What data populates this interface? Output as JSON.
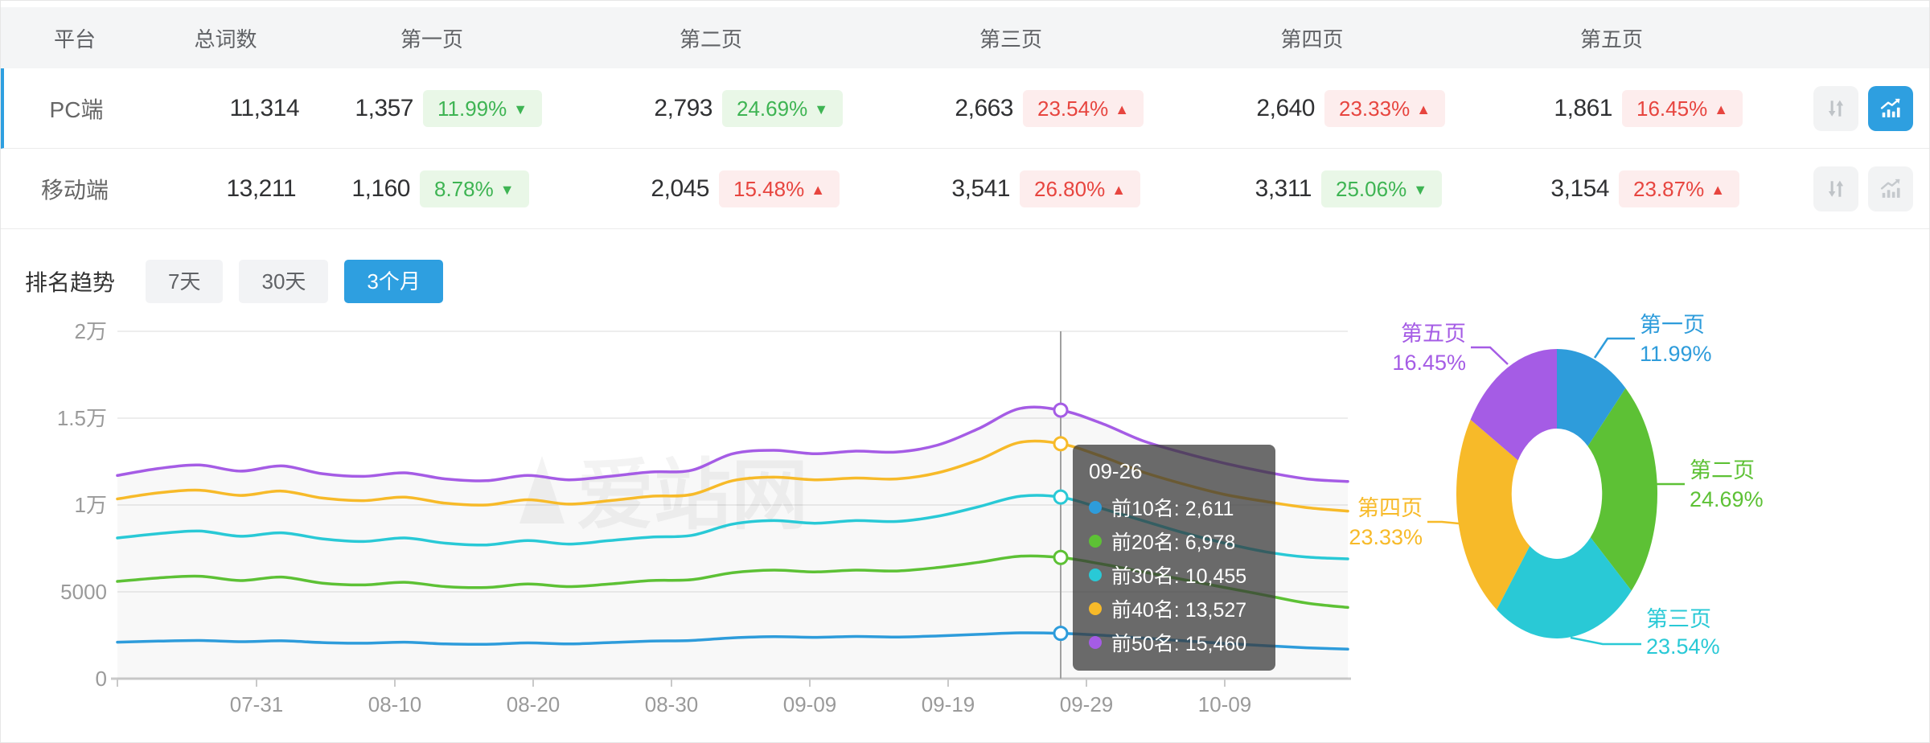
{
  "colors": {
    "accent": "#2e9fe0",
    "badge_green_text": "#3eb453",
    "badge_green_bg": "#e9f7e7",
    "badge_red_text": "#e7453f",
    "badge_red_bg": "#fdeded",
    "axis_text": "#9a9a9a",
    "grid_line": "#ededed",
    "axis_line": "#c9c9c9",
    "crosshair": "#a0a0a0",
    "tooltip_bg": "rgba(56,56,56,0.74)"
  },
  "icons": {
    "sort": "sort-arrows-icon",
    "chart": "trend-chart-icon"
  },
  "table": {
    "columns": [
      "平台",
      "总词数",
      "第一页",
      "第二页",
      "第三页",
      "第四页",
      "第五页"
    ],
    "rows": [
      {
        "platform": "PC端",
        "total": "11,314",
        "selected": true,
        "chart_active": true,
        "pages": [
          {
            "count": "1,357",
            "pct": "11.99%",
            "dir": "down",
            "tone": "green"
          },
          {
            "count": "2,793",
            "pct": "24.69%",
            "dir": "down",
            "tone": "green"
          },
          {
            "count": "2,663",
            "pct": "23.54%",
            "dir": "up",
            "tone": "red"
          },
          {
            "count": "2,640",
            "pct": "23.33%",
            "dir": "up",
            "tone": "red"
          },
          {
            "count": "1,861",
            "pct": "16.45%",
            "dir": "up",
            "tone": "red"
          }
        ]
      },
      {
        "platform": "移动端",
        "total": "13,211",
        "selected": false,
        "chart_active": false,
        "pages": [
          {
            "count": "1,160",
            "pct": "8.78%",
            "dir": "down",
            "tone": "green"
          },
          {
            "count": "2,045",
            "pct": "15.48%",
            "dir": "up",
            "tone": "red"
          },
          {
            "count": "3,541",
            "pct": "26.80%",
            "dir": "up",
            "tone": "red"
          },
          {
            "count": "3,311",
            "pct": "25.06%",
            "dir": "down",
            "tone": "green"
          },
          {
            "count": "3,154",
            "pct": "23.87%",
            "dir": "up",
            "tone": "red"
          }
        ]
      }
    ]
  },
  "trend": {
    "title": "排名趋势",
    "ranges": [
      {
        "label": "7天",
        "active": false
      },
      {
        "label": "30天",
        "active": false
      },
      {
        "label": "3个月",
        "active": true
      }
    ]
  },
  "tooltip": {
    "title": "09-26",
    "rows": [
      {
        "label": "前10名",
        "value": "2,611",
        "color": "#2e9cdb"
      },
      {
        "label": "前20名",
        "value": "6,978",
        "color": "#5dc135"
      },
      {
        "label": "前30名",
        "value": "10,455",
        "color": "#29c9d6"
      },
      {
        "label": "前40名",
        "value": "13,527",
        "color": "#f7ba29"
      },
      {
        "label": "前50名",
        "value": "15,460",
        "color": "#a55ce5"
      }
    ]
  },
  "watermark_text": "爱站网",
  "chart_data": [
    {
      "type": "line",
      "title": "排名趋势 (3个月)",
      "x_ticks": [
        "07-31",
        "08-10",
        "08-20",
        "08-30",
        "09-09",
        "09-19",
        "09-29",
        "10-09"
      ],
      "y_ticks": [
        "0",
        "5000",
        "1万",
        "1.5万",
        "2万"
      ],
      "ylim": [
        0,
        20000
      ],
      "grid": true,
      "legend_position": "none",
      "crosshair": {
        "date": "09-26",
        "index": 23
      },
      "series": [
        {
          "name": "前10名",
          "color": "#2e9cdb",
          "values": [
            2100,
            2160,
            2200,
            2130,
            2180,
            2080,
            2040,
            2100,
            2000,
            1980,
            2060,
            2000,
            2080,
            2160,
            2200,
            2350,
            2420,
            2380,
            2430,
            2400,
            2460,
            2550,
            2640,
            2611,
            2500,
            2340,
            2180,
            2030,
            1900,
            1780,
            1700
          ]
        },
        {
          "name": "前20名",
          "color": "#5dc135",
          "values": [
            5600,
            5800,
            5900,
            5650,
            5850,
            5500,
            5400,
            5550,
            5300,
            5250,
            5450,
            5300,
            5450,
            5650,
            5700,
            6100,
            6250,
            6150,
            6250,
            6200,
            6400,
            6700,
            7050,
            6978,
            6600,
            6150,
            5700,
            5250,
            4800,
            4350,
            4100
          ]
        },
        {
          "name": "前30名",
          "color": "#29c9d6",
          "values": [
            8100,
            8350,
            8500,
            8200,
            8400,
            8050,
            7900,
            8100,
            7800,
            7700,
            7950,
            7750,
            7950,
            8150,
            8250,
            8900,
            9100,
            8950,
            9100,
            9050,
            9350,
            9900,
            10500,
            10455,
            9800,
            9100,
            8400,
            7800,
            7300,
            7000,
            6900
          ]
        },
        {
          "name": "前40名",
          "color": "#f7ba29",
          "values": [
            10350,
            10700,
            10850,
            10550,
            10800,
            10400,
            10250,
            10450,
            10100,
            10000,
            10300,
            10050,
            10250,
            10500,
            10600,
            11400,
            11600,
            11450,
            11550,
            11500,
            11850,
            12600,
            13600,
            13527,
            12800,
            11900,
            11200,
            10600,
            10200,
            9850,
            9650
          ]
        },
        {
          "name": "前50名",
          "color": "#a55ce5",
          "values": [
            11700,
            12100,
            12300,
            11950,
            12250,
            11800,
            11650,
            11850,
            11500,
            11400,
            11700,
            11450,
            11650,
            11900,
            12000,
            12950,
            13150,
            12950,
            13100,
            13050,
            13450,
            14400,
            15550,
            15460,
            14700,
            13700,
            13000,
            12400,
            11900,
            11500,
            11350
          ]
        }
      ]
    },
    {
      "type": "pie",
      "inner_ratio": 0.45,
      "slices": [
        {
          "label": "第一页",
          "pct": 11.99,
          "color": "#2e9cdb"
        },
        {
          "label": "第二页",
          "pct": 24.69,
          "color": "#5dc135"
        },
        {
          "label": "第三页",
          "pct": 23.54,
          "color": "#29c9d6"
        },
        {
          "label": "第四页",
          "pct": 23.33,
          "color": "#f7ba29"
        },
        {
          "label": "第五页",
          "pct": 16.45,
          "color": "#a55ce5"
        }
      ]
    }
  ]
}
